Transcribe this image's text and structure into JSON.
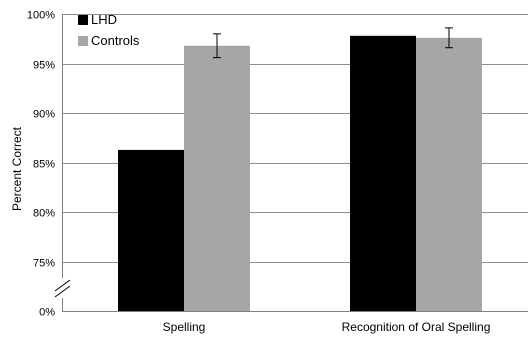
{
  "chart_data": {
    "type": "bar",
    "title": "",
    "xlabel": "",
    "ylabel": "Percent Correct",
    "categories": [
      "Spelling",
      "Recognition of Oral Spelling"
    ],
    "series": [
      {
        "name": "LHD",
        "color": "#000000",
        "values": [
          86.3,
          97.8
        ],
        "errors": [
          null,
          null
        ]
      },
      {
        "name": "Controls",
        "color": "#a6a6a6",
        "values": [
          96.8,
          97.6
        ],
        "errors": [
          1.2,
          1.0
        ]
      }
    ],
    "yticks": [
      {
        "value": 0,
        "label": "0%"
      },
      {
        "value": 75,
        "label": "75%"
      },
      {
        "value": 80,
        "label": "80%"
      },
      {
        "value": 85,
        "label": "85%"
      },
      {
        "value": 90,
        "label": "90%"
      },
      {
        "value": 95,
        "label": "95%"
      },
      {
        "value": 100,
        "label": "100%"
      }
    ],
    "ylim": [
      70,
      100
    ],
    "axis_break": true,
    "grid": true,
    "legend_position": "top-left",
    "gridline_color": "#8c8c8c"
  }
}
